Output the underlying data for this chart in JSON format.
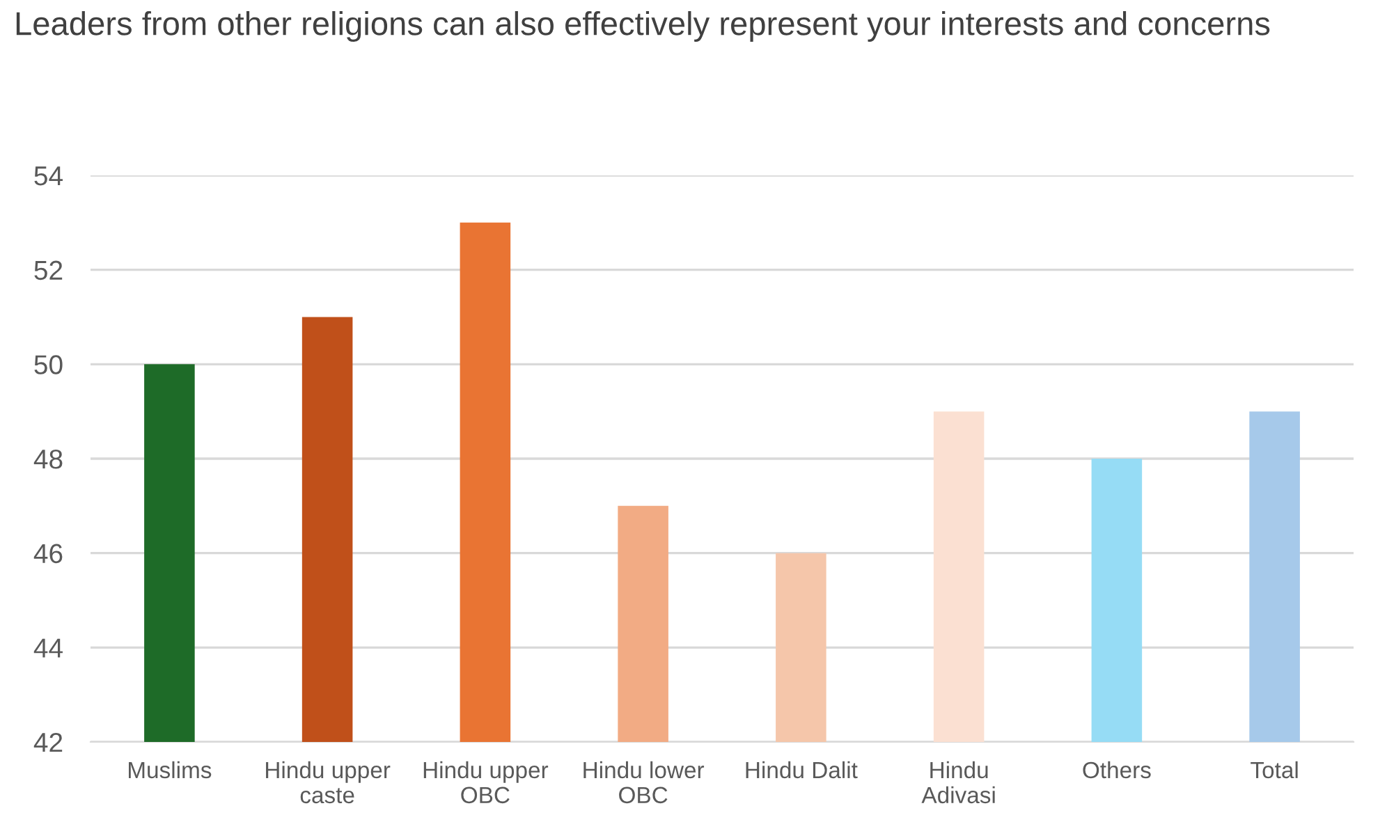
{
  "chart_data": {
    "type": "bar",
    "title": "Leaders from other religions can also effectively represent your interests and concerns",
    "categories": [
      "Muslims",
      "Hindu upper caste",
      "Hindu upper OBC",
      "Hindu lower OBC",
      "Hindu Dalit",
      "Hindu Adivasi",
      "Others",
      "Total"
    ],
    "values": [
      50,
      51,
      53,
      47,
      46,
      49,
      48,
      49
    ],
    "colors": [
      "#1e6b28",
      "#c0501a",
      "#e97433",
      "#f2ab84",
      "#f5c6aa",
      "#fbe0d2",
      "#96dcf5",
      "#a6c9ea"
    ],
    "ylim": [
      42,
      54
    ],
    "yticks": [
      42,
      44,
      46,
      48,
      50,
      52,
      54
    ],
    "grid": "y",
    "legend": false
  }
}
